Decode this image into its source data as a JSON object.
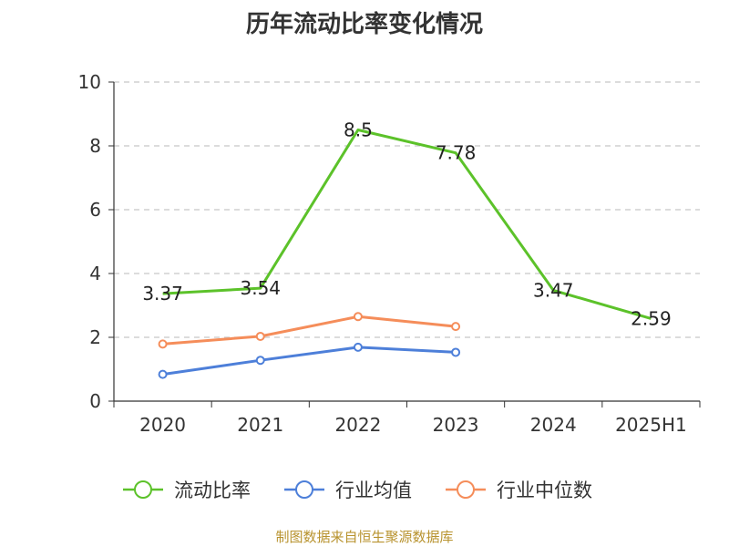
{
  "chart_data": {
    "type": "line",
    "title": "历年流动比率变化情况",
    "categories": [
      "2020",
      "2021",
      "2022",
      "2023",
      "2024",
      "2025H1"
    ],
    "ylim": [
      0,
      10
    ],
    "yticks": [
      0,
      2,
      4,
      6,
      8,
      10
    ],
    "grid": true,
    "legend_position": "bottom",
    "series": [
      {
        "name": "流动比率",
        "color": "#5cc22a",
        "values": [
          3.37,
          3.54,
          8.5,
          7.78,
          3.47,
          2.59
        ],
        "labels": [
          "3.37",
          "3.54",
          "8.5",
          "7.78",
          "3.47",
          "2.59"
        ]
      },
      {
        "name": "行业均值",
        "color": "#4d7fd9",
        "values": [
          0.84,
          1.28,
          1.69,
          1.53,
          null,
          null
        ]
      },
      {
        "name": "行业中位数",
        "color": "#f58d5a",
        "values": [
          1.79,
          2.03,
          2.65,
          2.34,
          null,
          null
        ]
      }
    ]
  },
  "source_note": "制图数据来自恒生聚源数据库"
}
